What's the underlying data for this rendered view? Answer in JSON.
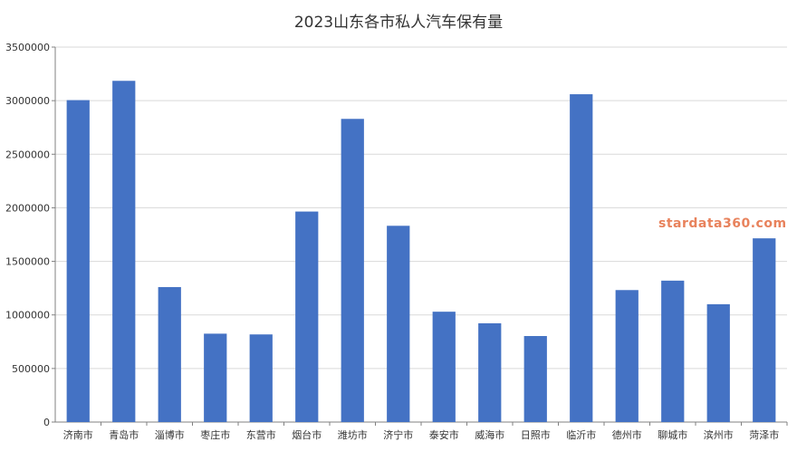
{
  "colors": {
    "bar": "#4472C4",
    "grid": "#D9D9D9",
    "axis": "#808080",
    "watermark": "#E8825C"
  },
  "watermark": "stardata360.com",
  "chart_data": {
    "type": "bar",
    "title": "2023山东各市私人汽车保有量",
    "xlabel": "",
    "ylabel": "",
    "ylim": [
      0,
      3500000
    ],
    "yticks": [
      "0",
      "500000",
      "1000000",
      "1500000",
      "2000000",
      "2500000",
      "3000000",
      "3500000"
    ],
    "grid": true,
    "legend": "none",
    "categories": [
      "济南市",
      "青岛市",
      "淄博市",
      "枣庄市",
      "东营市",
      "烟台市",
      "潍坊市",
      "济宁市",
      "泰安市",
      "威海市",
      "日照市",
      "临沂市",
      "德州市",
      "聊城市",
      "滨州市",
      "菏泽市"
    ],
    "values": [
      3005000,
      3185000,
      1260000,
      825000,
      818000,
      1965000,
      2830000,
      1832000,
      1030000,
      922000,
      803000,
      3060000,
      1232000,
      1320000,
      1100000,
      1715000
    ]
  }
}
